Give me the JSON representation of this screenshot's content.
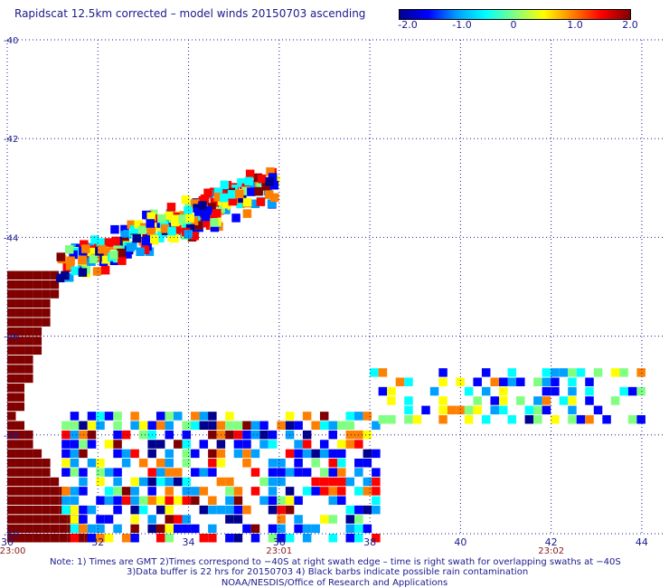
{
  "title": "Rapidscat 12.5km corrected – model winds 20150703 ascending",
  "colorbar": {
    "labels": [
      "-2.0",
      "-1.0",
      "0",
      "1.0",
      "2.0"
    ],
    "stops": [
      "#00008f",
      "#0000ff",
      "#00a0ff",
      "#00ffff",
      "#80ff80",
      "#ffff00",
      "#ff8000",
      "#ff0000",
      "#800000"
    ]
  },
  "chart_data": {
    "type": "heatmap",
    "title": "Rapidscat 12.5km corrected – model winds 20150703 ascending",
    "x_tick_labels": [
      "30",
      "32",
      "34",
      "36",
      "38",
      "40",
      "42",
      "44"
    ],
    "y_tick_labels": [
      "-40",
      "-42",
      "-44",
      "-46",
      "-48",
      "-50"
    ],
    "xlim": [
      30,
      44.5
    ],
    "ylim": [
      -50,
      -40
    ],
    "value_range": [
      -2.0,
      2.0
    ],
    "time_labels": [
      {
        "lon": 30,
        "text": "23:00"
      },
      {
        "lon": 36,
        "text": "23:01"
      },
      {
        "lon": 42,
        "text": "23:02"
      }
    ]
  },
  "notes": {
    "line1": "Note: 1) Times are GMT 2)Times correspond to −40S at right swath edge – time is right swath for overlapping swaths at −40S",
    "line2": "3)Data buffer is 22 hrs for 20150703 4) Black barbs indicate possible rain contamination",
    "line3": "NOAA/NESDIS/Office of Research and Applications"
  }
}
